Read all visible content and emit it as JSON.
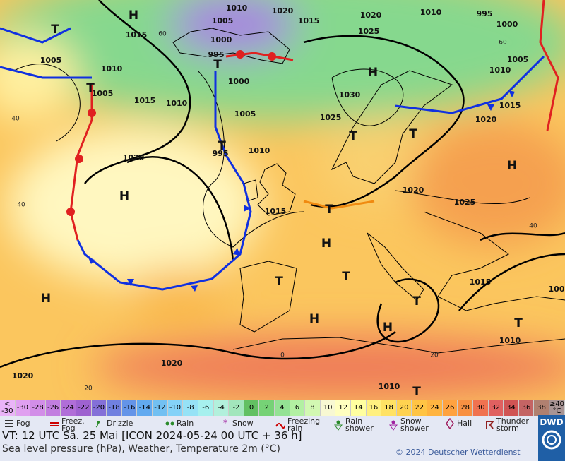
{
  "map": {
    "isobar_labels": [
      "1010",
      "1020",
      "1015",
      "1005",
      "1000",
      "995",
      "1000",
      "1005",
      "1010",
      "995",
      "1015",
      "1010",
      "1010",
      "1005",
      "1005",
      "1020",
      "1015",
      "1020",
      "1025",
      "1015",
      "1010",
      "995",
      "1000",
      "1005",
      "1010",
      "1015",
      "1020",
      "1030",
      "1025",
      "1020",
      "1025",
      "1015",
      "1010",
      "1010",
      "1020",
      "1020",
      "100"
    ],
    "pressure_centers": [
      "H",
      "T",
      "T",
      "T",
      "T",
      "H",
      "T",
      "T",
      "H",
      "H",
      "H",
      "T",
      "H",
      "T",
      "T",
      "T",
      "H",
      "H",
      "T",
      "T"
    ],
    "grid_labels": [
      "60",
      "60",
      "40",
      "40",
      "20",
      "0",
      "20",
      "40"
    ]
  },
  "temperature_scale": {
    "labels": [
      "<\n-30",
      "-30",
      "-28",
      "-26",
      "-24",
      "-22",
      "-20",
      "-18",
      "-16",
      "-14",
      "-12",
      "-10",
      "-8",
      "-6",
      "-4",
      "-2",
      "0",
      "2",
      "4",
      "6",
      "8",
      "10",
      "12",
      "14",
      "16",
      "18",
      "20",
      "22",
      "24",
      "26",
      "28",
      "30",
      "32",
      "34",
      "36",
      "38",
      "≥40\n°C"
    ],
    "colors": [
      "#eab4f8",
      "#e0a0f0",
      "#d28ee8",
      "#c27ee0",
      "#b06ed8",
      "#9e62d0",
      "#8470d8",
      "#7080e0",
      "#6494e8",
      "#62aaf0",
      "#72c0f2",
      "#84d2f8",
      "#96e2f6",
      "#a6f0ee",
      "#b2f0dc",
      "#a2e6bc",
      "#62c062",
      "#76d276",
      "#94e294",
      "#b2f0a2",
      "#d2f8b2",
      "#f8f8d2",
      "#ffffc0",
      "#ffffa0",
      "#fff080",
      "#ffe264",
      "#ffd250",
      "#ffc444",
      "#ffb440",
      "#ffa240",
      "#f89042",
      "#f07250",
      "#e06060",
      "#d05454",
      "#c46464",
      "#b08070",
      "#a89494"
    ]
  },
  "weather_legend": [
    "Fog",
    "Freez.\nFog",
    "Drizzle",
    "Rain",
    "Snow",
    "Freezing\nrain",
    "Rain\nshower",
    "Snow\nshower",
    "Hail",
    "Thunder\nstorm"
  ],
  "footer": {
    "valid_time": "VT: 12 UTC Sa.  25 Mai [ICON 2024-05-24  00 UTC + 36 h]",
    "description": "Sea level pressure (hPa), Weather, Temperature 2m (°C)",
    "copyright": "© 2024 Deutscher Wetterdienst",
    "logo": "DWD"
  }
}
